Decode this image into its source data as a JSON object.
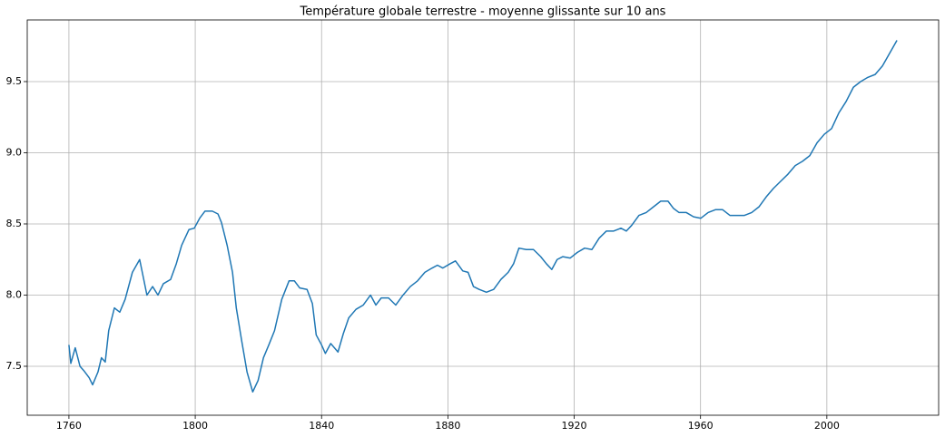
{
  "chart_data": {
    "type": "line",
    "title": "Température globale terrestre - moyenne glissante sur 10 ans",
    "x": [
      1760.0,
      1760.6,
      1762.0,
      1763.5,
      1764.7,
      1766.4,
      1767.5,
      1769.2,
      1770.3,
      1771.5,
      1772.6,
      1774.4,
      1776.1,
      1777.8,
      1780.1,
      1782.4,
      1783.6,
      1784.7,
      1786.5,
      1788.2,
      1789.9,
      1792.2,
      1794.0,
      1795.7,
      1798.0,
      1799.7,
      1801.4,
      1803.1,
      1805.4,
      1807.2,
      1808.3,
      1810.1,
      1811.8,
      1813.0,
      1814.7,
      1816.4,
      1818.2,
      1819.9,
      1821.6,
      1823.3,
      1825.1,
      1827.4,
      1829.7,
      1831.4,
      1833.1,
      1835.4,
      1837.1,
      1838.3,
      1840.0,
      1841.2,
      1842.9,
      1845.2,
      1846.9,
      1848.6,
      1850.9,
      1853.2,
      1855.5,
      1857.2,
      1858.9,
      1861.2,
      1863.5,
      1865.8,
      1868.1,
      1870.4,
      1872.7,
      1875.0,
      1876.7,
      1878.4,
      1880.7,
      1882.4,
      1884.7,
      1886.4,
      1888.1,
      1889.9,
      1892.2,
      1894.5,
      1896.8,
      1899.1,
      1900.8,
      1902.5,
      1904.8,
      1907.1,
      1909.4,
      1911.2,
      1912.9,
      1914.6,
      1916.4,
      1918.7,
      1921.0,
      1923.3,
      1925.6,
      1927.9,
      1930.2,
      1932.5,
      1934.8,
      1936.5,
      1938.2,
      1940.5,
      1942.8,
      1945.1,
      1947.4,
      1949.7,
      1951.4,
      1953.2,
      1955.5,
      1957.8,
      1960.1,
      1962.4,
      1964.7,
      1967.0,
      1969.3,
      1971.6,
      1973.9,
      1976.2,
      1978.5,
      1980.8,
      1983.1,
      1985.4,
      1987.7,
      1990.0,
      1992.3,
      1994.6,
      1996.9,
      1999.2,
      2001.5,
      2003.8,
      2006.1,
      2008.4,
      2010.7,
      2013.0,
      2015.3,
      2017.6,
      2019.9,
      2022.2
    ],
    "series": [
      {
        "color": "#1f77b4",
        "values": [
          7.65,
          7.52,
          7.63,
          7.5,
          7.47,
          7.42,
          7.37,
          7.46,
          7.56,
          7.53,
          7.75,
          7.91,
          7.88,
          7.97,
          8.16,
          8.25,
          8.12,
          8.0,
          8.06,
          8.0,
          8.08,
          8.11,
          8.22,
          8.35,
          8.46,
          8.47,
          8.54,
          8.59,
          8.59,
          8.57,
          8.51,
          8.35,
          8.16,
          7.91,
          7.68,
          7.46,
          7.32,
          7.4,
          7.56,
          7.65,
          7.75,
          7.97,
          8.1,
          8.1,
          8.05,
          8.04,
          7.94,
          7.72,
          7.65,
          7.59,
          7.66,
          7.6,
          7.73,
          7.84,
          7.9,
          7.93,
          8.0,
          7.93,
          7.98,
          7.98,
          7.93,
          8.0,
          8.06,
          8.1,
          8.16,
          8.19,
          8.21,
          8.19,
          8.22,
          8.24,
          8.17,
          8.16,
          8.06,
          8.04,
          8.02,
          8.04,
          8.11,
          8.16,
          8.22,
          8.33,
          8.32,
          8.32,
          8.27,
          8.22,
          8.18,
          8.25,
          8.27,
          8.26,
          8.3,
          8.33,
          8.32,
          8.4,
          8.45,
          8.45,
          8.47,
          8.45,
          8.49,
          8.56,
          8.58,
          8.62,
          8.66,
          8.66,
          8.61,
          8.58,
          8.58,
          8.55,
          8.54,
          8.58,
          8.6,
          8.6,
          8.56,
          8.56,
          8.56,
          8.58,
          8.62,
          8.69,
          8.75,
          8.8,
          8.85,
          8.91,
          8.94,
          8.98,
          9.07,
          9.13,
          9.17,
          9.28,
          9.36,
          9.46,
          9.5,
          9.53,
          9.55,
          9.61,
          9.7,
          9.79
        ]
      }
    ],
    "xlim": [
      1746.8,
      2035.4
    ],
    "ylim": [
      7.156,
      9.933
    ],
    "xticks": [
      1760,
      1800,
      1840,
      1880,
      1920,
      1960,
      2000
    ],
    "yticks": [
      7.5,
      {
        "value": 8,
        "label": "8.0"
      },
      8.5,
      {
        "value": 9,
        "label": "9.0"
      },
      9.5
    ],
    "grid": true
  }
}
